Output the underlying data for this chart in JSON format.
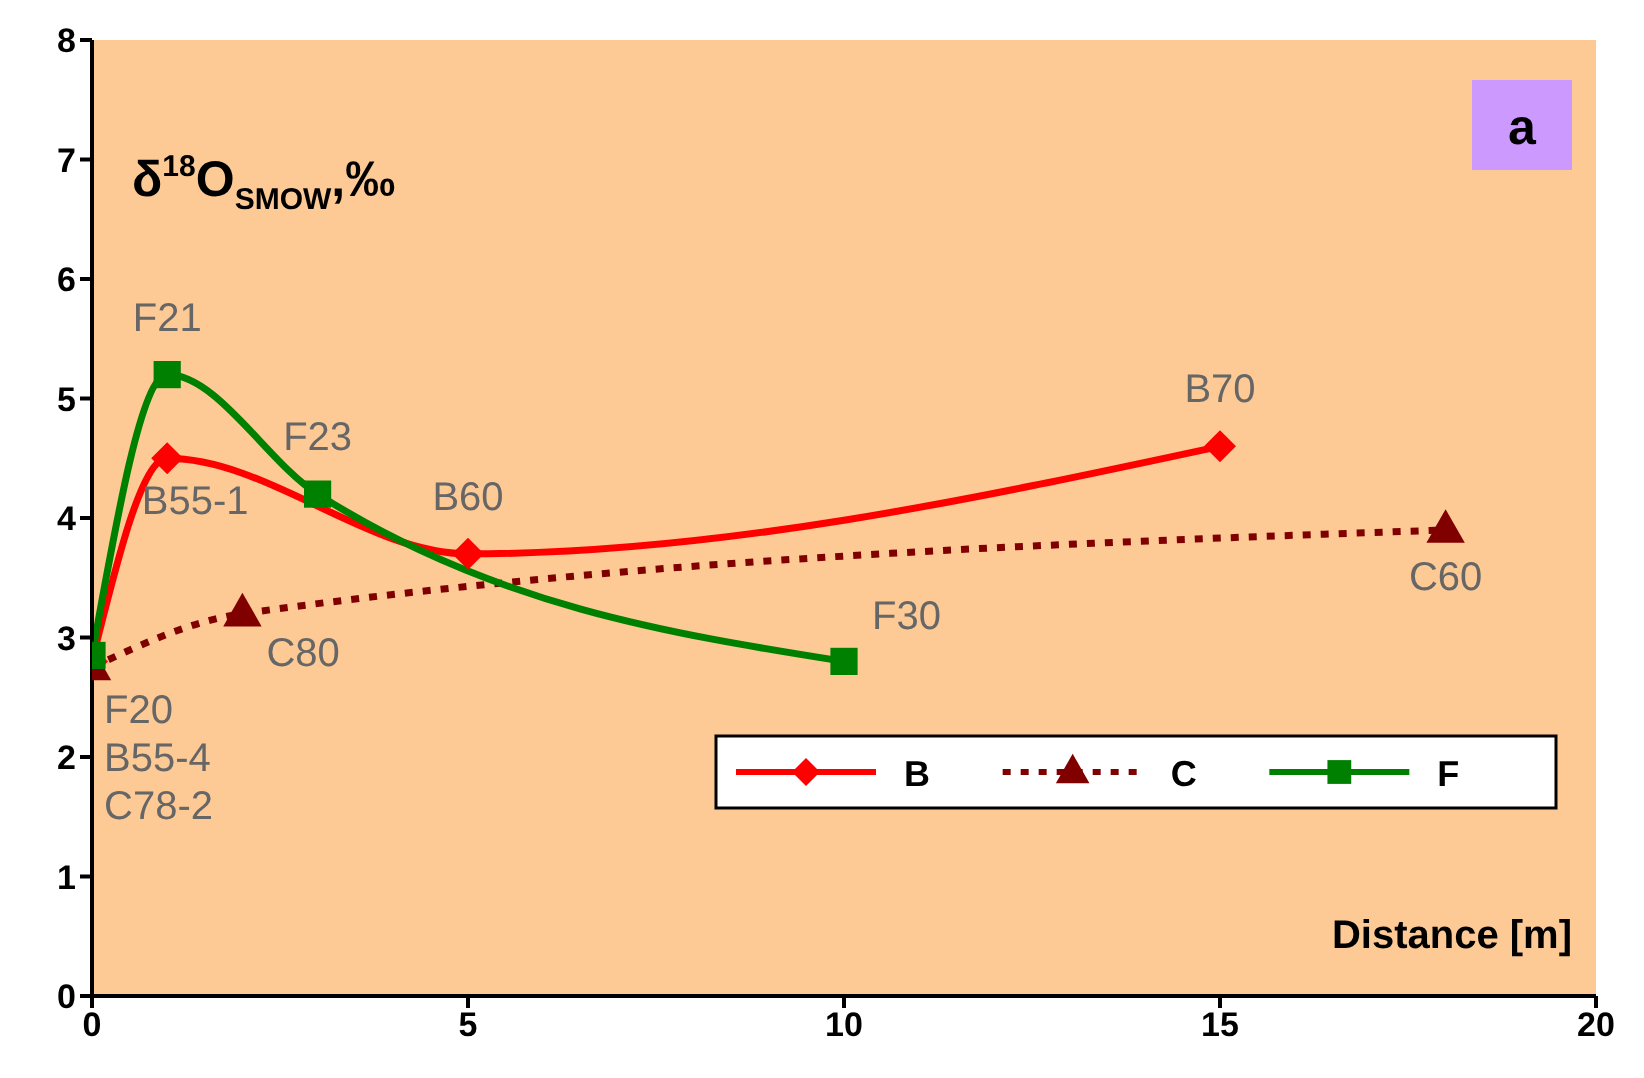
{
  "chart_data": {
    "type": "line",
    "title": "δ$^{18}$O$_{SMOW}$,‰",
    "xlabel": "Distance [m]",
    "xlim": [
      0,
      20
    ],
    "xticks": [
      0,
      5,
      10,
      15,
      20
    ],
    "ylim": [
      0,
      8
    ],
    "yticks": [
      0,
      1,
      2,
      3,
      4,
      5,
      6,
      7,
      8
    ],
    "grid": false,
    "legend": "bottom right",
    "series": [
      {
        "name": "B",
        "color": "#ff0000",
        "marker": "diamond",
        "line_style": "solid",
        "x": [
          0,
          1,
          5,
          15
        ],
        "values": [
          2.8,
          4.5,
          3.7,
          4.6
        ]
      },
      {
        "name": "C",
        "color": "#800000",
        "marker": "triangle",
        "line_style": "dotted",
        "x": [
          0,
          2,
          18
        ],
        "values": [
          2.75,
          3.2,
          3.9
        ]
      },
      {
        "name": "F",
        "color": "#008000",
        "marker": "square",
        "line_style": "solid",
        "x": [
          0,
          1,
          3,
          10
        ],
        "values": [
          2.85,
          5.2,
          4.2,
          2.8
        ]
      }
    ],
    "annotations": [
      "a",
      {
        "text": "F21",
        "x": 1,
        "y": 5.2
      },
      {
        "text": "B55-1",
        "x": 1,
        "y": 4.5
      },
      {
        "text": "F23",
        "x": 3,
        "y": 4.2
      },
      {
        "text": "B60",
        "x": 5,
        "y": 3.7
      },
      {
        "text": "C80",
        "x": 2,
        "y": 3.2
      },
      {
        "text": "F20",
        "x": 0,
        "y": 2.85
      },
      "B55-4",
      "C78-2",
      {
        "text": "B70",
        "x": 15,
        "y": 4.6
      },
      {
        "text": "C60",
        "x": 18,
        "y": 3.9
      },
      {
        "text": "F30",
        "x": 10,
        "y": 2.8
      }
    ]
  }
}
